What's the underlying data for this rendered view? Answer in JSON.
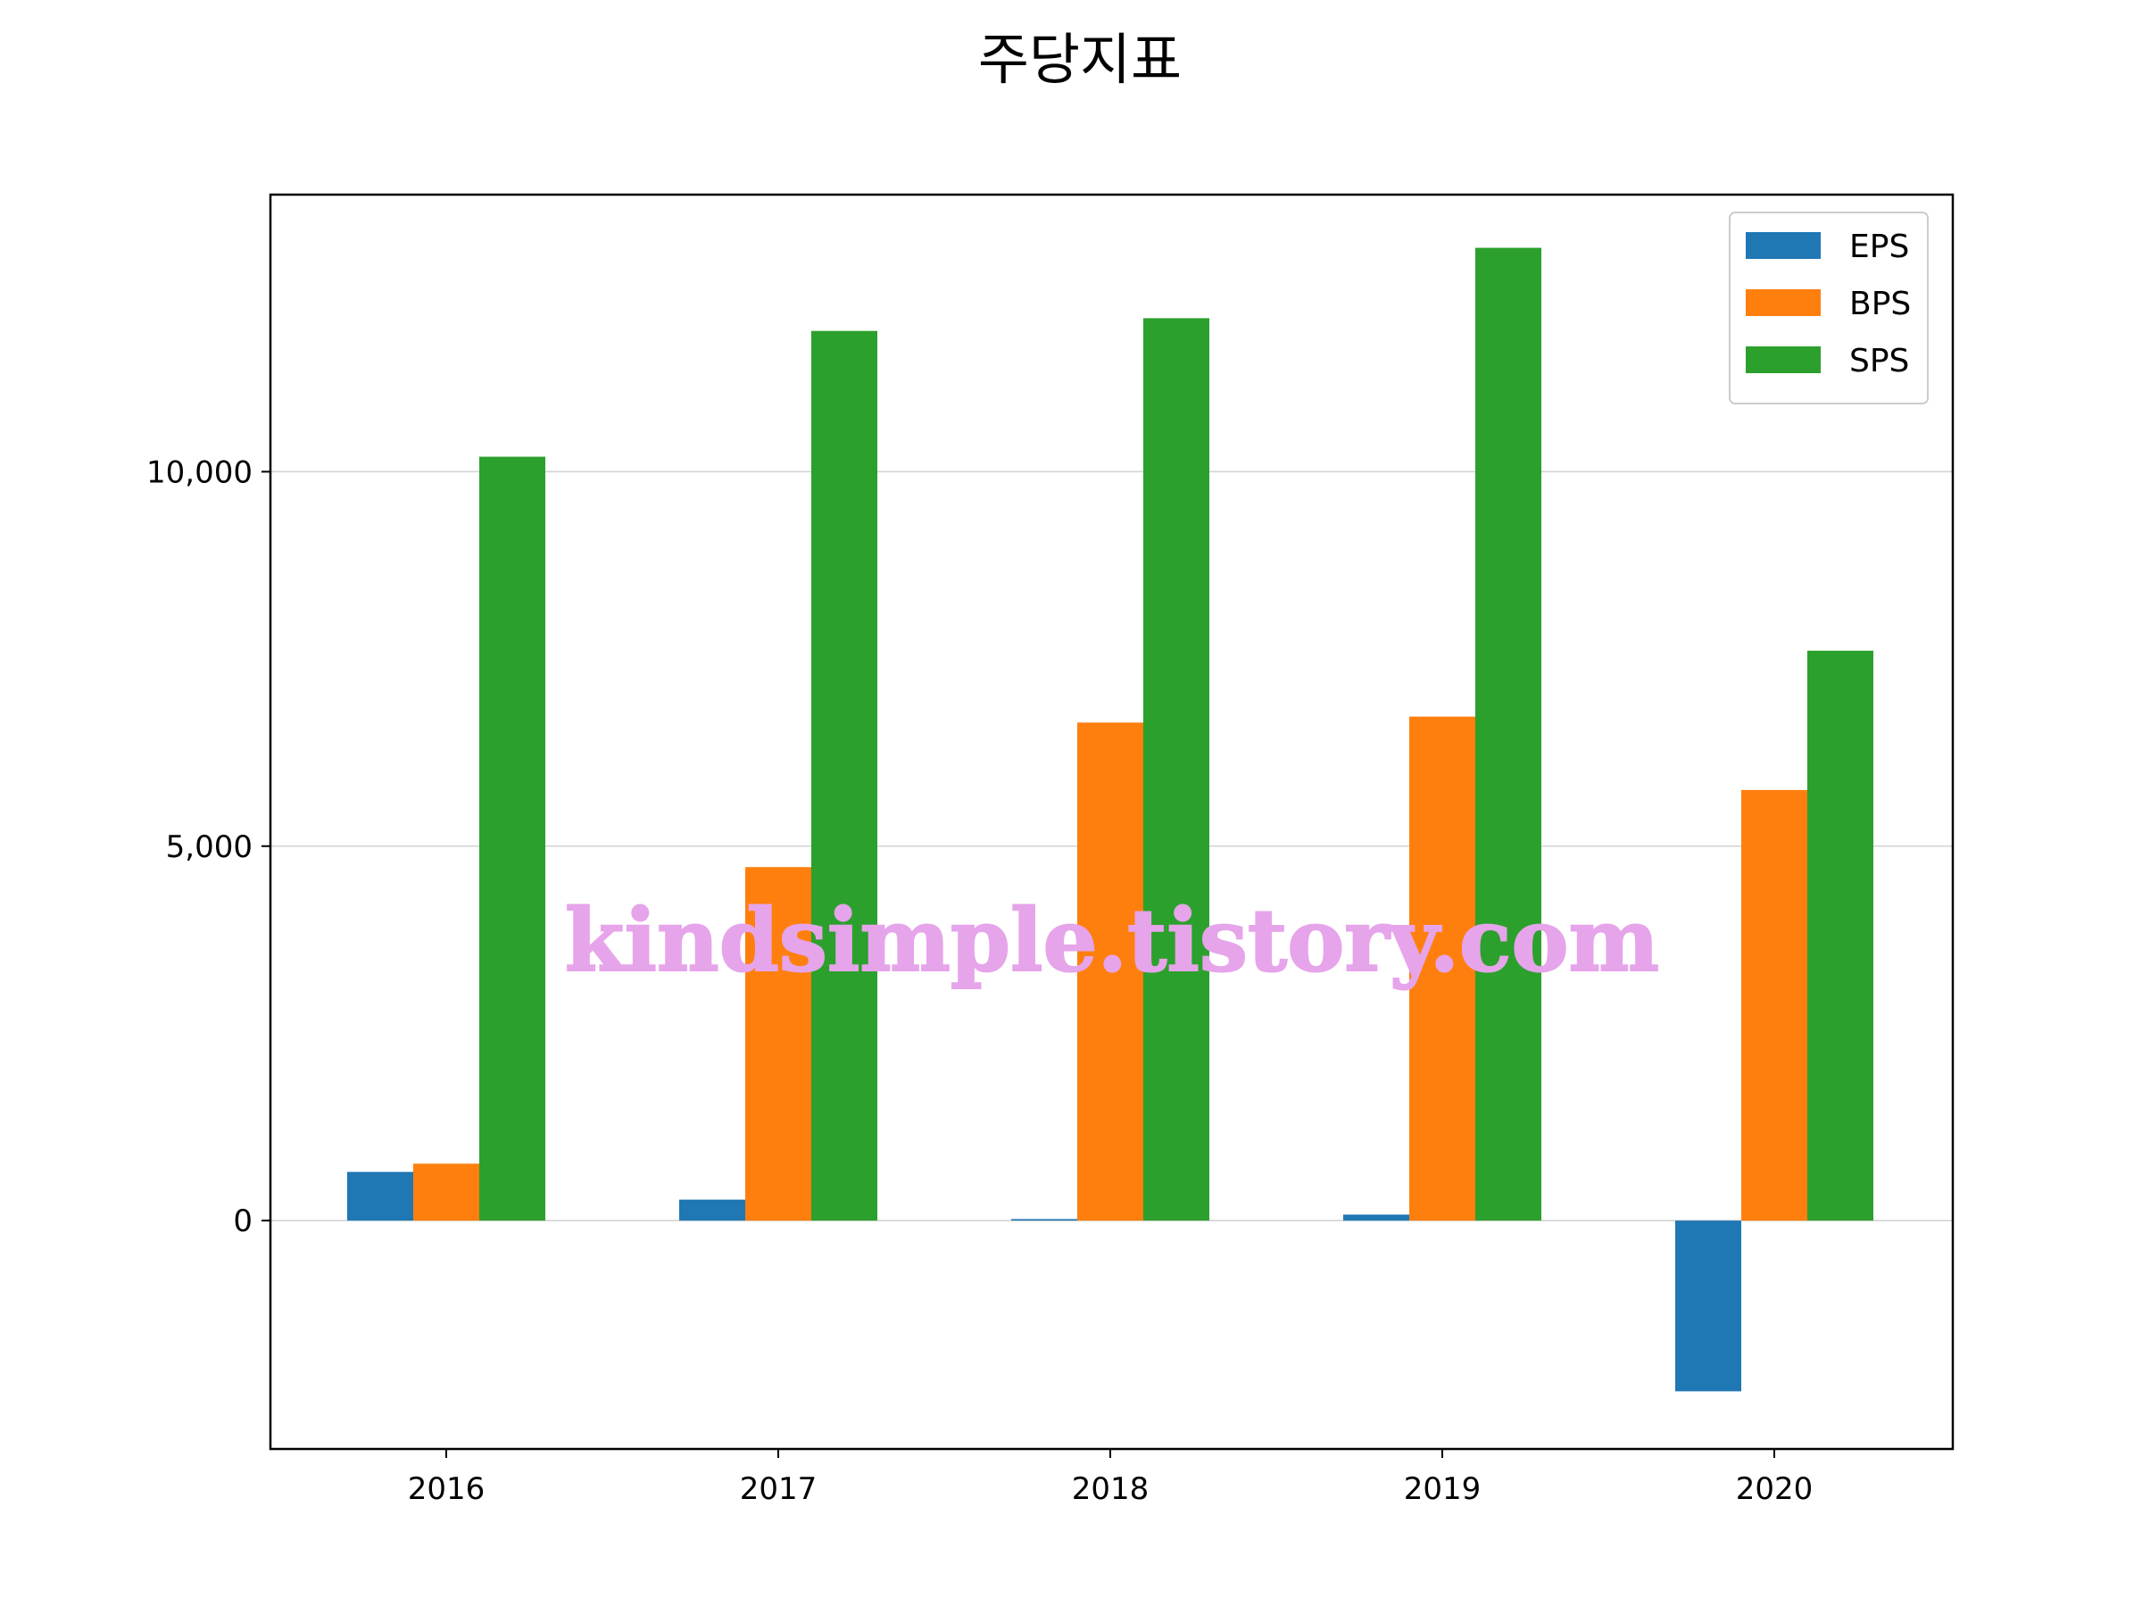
{
  "chart_data": {
    "type": "bar",
    "title": "주당지표",
    "xlabel": "",
    "ylabel": "",
    "categories": [
      "2016",
      "2017",
      "2018",
      "2019",
      "2020"
    ],
    "series": [
      {
        "name": "EPS",
        "color": "#1f77b4",
        "values": [
          650,
          280,
          20,
          80,
          -2280
        ]
      },
      {
        "name": "BPS",
        "color": "#ff7f0e",
        "values": [
          760,
          4720,
          6650,
          6730,
          5750
        ]
      },
      {
        "name": "SPS",
        "color": "#2ca02c",
        "values": [
          10200,
          11880,
          12050,
          12990,
          7610
        ]
      }
    ],
    "ylim": [
      -3050,
      13700
    ],
    "yticks": [
      0,
      5000,
      10000
    ],
    "ytick_labels": [
      "0",
      "5,000",
      "10,000"
    ],
    "grid": "y",
    "legend": "top-right"
  },
  "watermark": "kindsimple.tistory.com"
}
